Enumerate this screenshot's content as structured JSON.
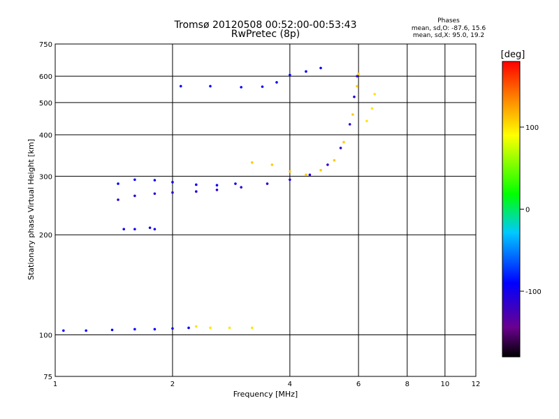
{
  "chart_data": {
    "type": "scatter",
    "title": "Tromsø 20120508 00:52:00-00:53:43",
    "subtitle": "RwPretec (8p)",
    "xlabel": "Frequency [MHz]",
    "ylabel": "Stationary phase Virtual Height [km]",
    "x_scale": "log",
    "y_scale": "log",
    "xlim": [
      1,
      12
    ],
    "ylim": [
      75,
      750
    ],
    "x_ticks": [
      1,
      2,
      4,
      6,
      8,
      10,
      12
    ],
    "y_ticks": [
      75,
      100,
      200,
      300,
      400,
      500,
      600,
      750
    ],
    "grid": true,
    "phase_stats": {
      "heading": "Phases",
      "line_o": "mean, sd,O: -87.6, 15.6",
      "line_x": "mean, sd,X:  95.0, 19.2"
    },
    "colorbar": {
      "label": "[deg]",
      "tick_labels": [
        "100",
        "0",
        "-100"
      ],
      "tick_values": [
        100,
        0,
        -100
      ],
      "range": [
        -180,
        180
      ],
      "colors": [
        "#000000",
        "#6a0090",
        "#0000ff",
        "#00c8ff",
        "#00ff00",
        "#ffff00",
        "#ff8000",
        "#ff0000"
      ]
    },
    "traces": [
      {
        "phase": -90,
        "points": [
          [
            1.05,
            103
          ],
          [
            1.2,
            103
          ],
          [
            1.4,
            103.5
          ],
          [
            1.6,
            104
          ],
          [
            1.8,
            104
          ],
          [
            2.0,
            104.5
          ],
          [
            2.2,
            105
          ]
        ]
      },
      {
        "phase": 100,
        "points": [
          [
            2.3,
            106
          ],
          [
            2.5,
            105
          ],
          [
            2.8,
            105
          ],
          [
            3.2,
            105
          ]
        ]
      },
      {
        "phase": -110,
        "points": [
          [
            1.45,
            255
          ],
          [
            1.6,
            262
          ],
          [
            1.8,
            266
          ],
          [
            2.0,
            268
          ],
          [
            2.3,
            270
          ],
          [
            2.6,
            273
          ],
          [
            3.0,
            278
          ],
          [
            3.5,
            285
          ],
          [
            4.0,
            293
          ],
          [
            4.5,
            303
          ],
          [
            5.0,
            325
          ],
          [
            5.4,
            365
          ],
          [
            5.7,
            430
          ],
          [
            5.85,
            520
          ],
          [
            5.95,
            600
          ]
        ]
      },
      {
        "phase": -90,
        "points": [
          [
            1.45,
            285
          ],
          [
            1.6,
            293
          ],
          [
            1.8,
            292
          ],
          [
            2.0,
            288
          ],
          [
            2.3,
            283
          ],
          [
            2.6,
            282
          ],
          [
            2.9,
            285
          ]
        ]
      },
      {
        "phase": 110,
        "points": [
          [
            3.2,
            330
          ],
          [
            3.6,
            325
          ],
          [
            4.0,
            310
          ],
          [
            4.4,
            303
          ],
          [
            4.8,
            313
          ],
          [
            5.2,
            335
          ],
          [
            5.5,
            380
          ],
          [
            5.8,
            460
          ],
          [
            5.95,
            560
          ],
          [
            6.0,
            610
          ]
        ]
      },
      {
        "phase": -90,
        "points": [
          [
            2.1,
            560
          ],
          [
            2.5,
            560
          ],
          [
            3.0,
            556
          ],
          [
            3.4,
            558
          ],
          [
            3.7,
            575
          ],
          [
            4.0,
            605
          ],
          [
            4.4,
            620
          ],
          [
            4.8,
            635
          ]
        ]
      },
      {
        "phase": 100,
        "points": [
          [
            6.3,
            440
          ],
          [
            6.5,
            480
          ],
          [
            6.6,
            530
          ]
        ]
      },
      {
        "phase": -95,
        "points": [
          [
            1.5,
            208
          ],
          [
            1.6,
            208
          ],
          [
            1.75,
            210
          ],
          [
            1.8,
            208
          ]
        ]
      }
    ]
  }
}
